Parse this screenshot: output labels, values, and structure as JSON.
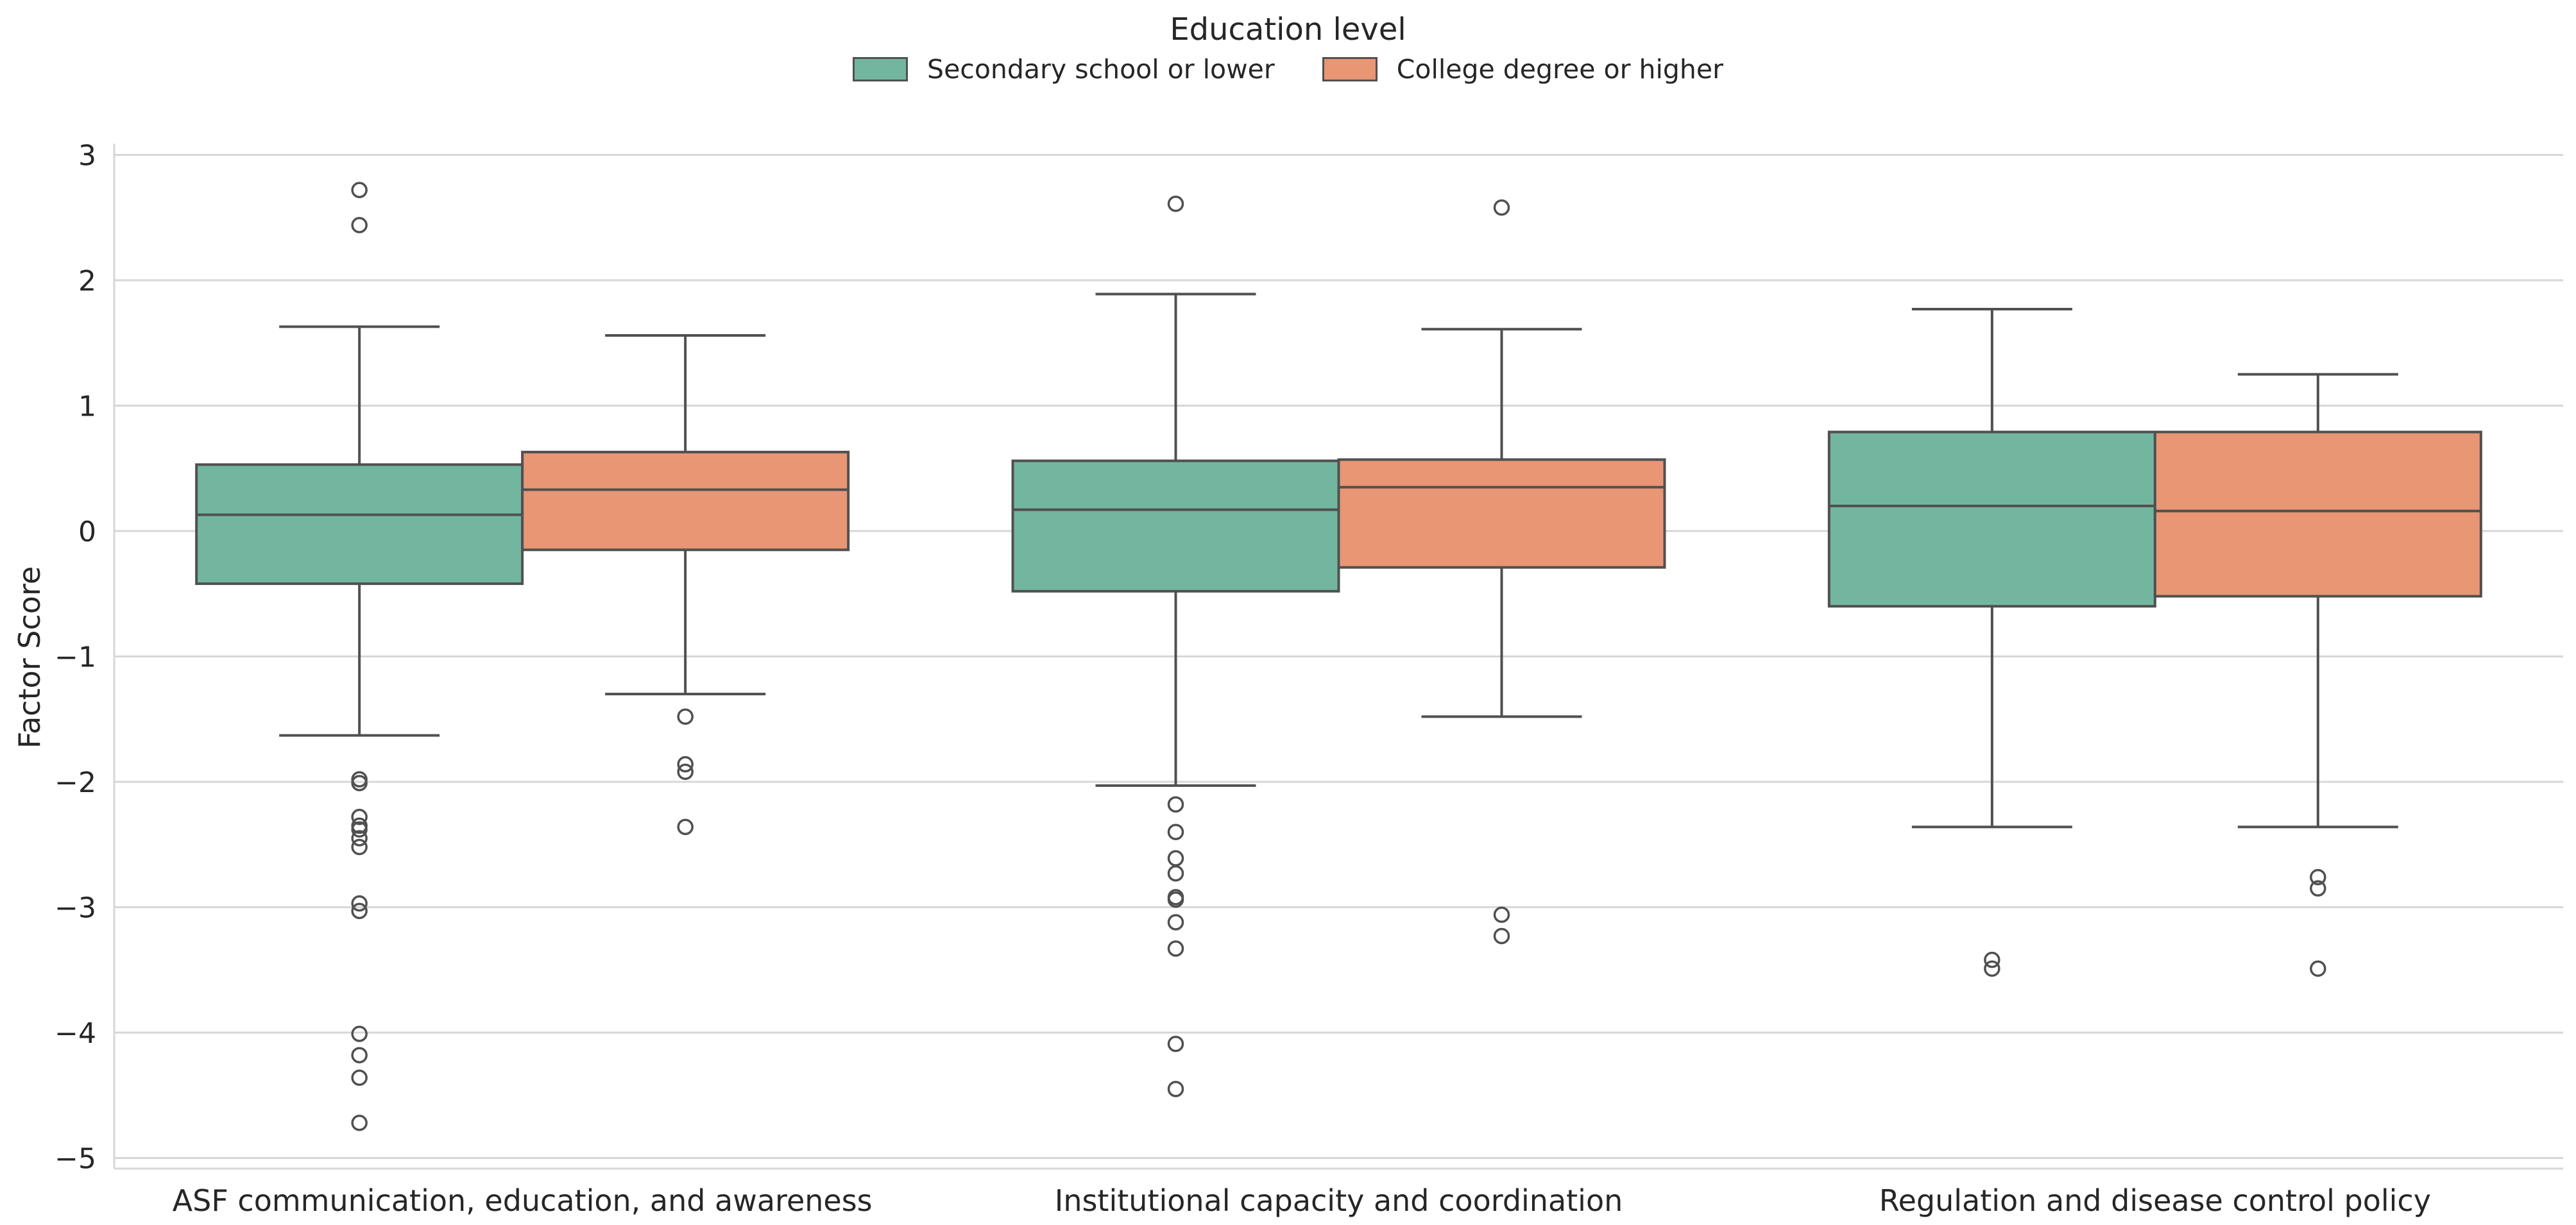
{
  "chart_data": {
    "type": "box",
    "title": "",
    "xlabel": "",
    "ylabel": "Factor Score",
    "ylim": [
      -5.1,
      3.15
    ],
    "yticks": [
      3,
      2,
      1,
      0,
      -1,
      -2,
      -3,
      -4,
      -5
    ],
    "ytick_labels": [
      "3",
      "2",
      "1",
      "0",
      "−1",
      "−2",
      "−3",
      "−4",
      "−5"
    ],
    "grid": true,
    "legend": {
      "title": "Education level",
      "position": "top-center"
    },
    "categories": [
      "ASF communication, education, and awareness",
      "Institutional capacity and coordination",
      "Regulation and disease control policy"
    ],
    "series": [
      {
        "name": "Secondary school or lower",
        "color": "#73b69f",
        "boxes": [
          {
            "whislo": -1.63,
            "q1": -0.42,
            "med": 0.13,
            "q3": 0.53,
            "whishi": 1.63,
            "fliers": [
              2.72,
              2.44,
              -1.98,
              -2.01,
              -2.28,
              -2.35,
              -2.38,
              -2.45,
              -2.52,
              -2.97,
              -3.03,
              -4.01,
              -4.18,
              -4.36,
              -4.72
            ]
          },
          {
            "whislo": -2.03,
            "q1": -0.48,
            "med": 0.17,
            "q3": 0.56,
            "whishi": 1.89,
            "fliers": [
              2.61,
              -2.18,
              -2.4,
              -2.61,
              -2.73,
              -2.92,
              -2.94,
              -3.12,
              -3.33,
              -4.09,
              -4.45
            ]
          },
          {
            "whislo": -2.36,
            "q1": -0.6,
            "med": 0.2,
            "q3": 0.79,
            "whishi": 1.77,
            "fliers": [
              -3.42,
              -3.49
            ]
          }
        ]
      },
      {
        "name": "College degree or higher",
        "color": "#e89674",
        "boxes": [
          {
            "whislo": -1.3,
            "q1": -0.15,
            "med": 0.33,
            "q3": 0.63,
            "whishi": 1.56,
            "fliers": [
              -1.48,
              -1.86,
              -1.92,
              -2.36
            ]
          },
          {
            "whislo": -1.48,
            "q1": -0.29,
            "med": 0.35,
            "q3": 0.57,
            "whishi": 1.61,
            "fliers": [
              2.58,
              -3.06,
              -3.23
            ]
          },
          {
            "whislo": -2.36,
            "q1": -0.52,
            "med": 0.16,
            "q3": 0.79,
            "whishi": 1.25,
            "fliers": [
              -2.76,
              -2.85,
              -3.49
            ]
          }
        ]
      }
    ]
  }
}
